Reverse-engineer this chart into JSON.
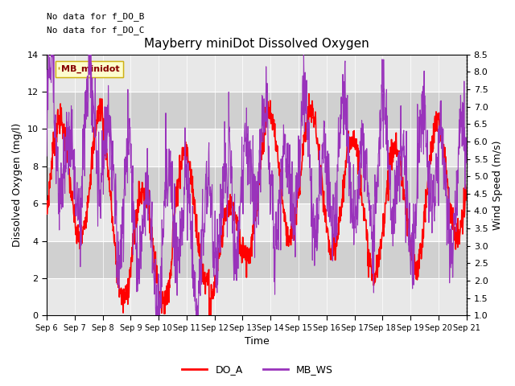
{
  "title": "Mayberry miniDot Dissolved Oxygen",
  "xlabel": "Time",
  "ylabel_left": "Dissolved Oxygen (mg/l)",
  "ylabel_right": "Wind Speed (m/s)",
  "top_left_text_1": "No data for f_DO_B",
  "top_left_text_2": "No data for f_DO_C",
  "legend_label_text": "MB_minidot",
  "legend_do": "DO_A",
  "legend_ws": "MB_WS",
  "do_color": "#ff0000",
  "ws_color": "#9933bb",
  "ylim_left": [
    0,
    14
  ],
  "ylim_right": [
    1.0,
    8.5
  ],
  "yticks_left": [
    0,
    2,
    4,
    6,
    8,
    10,
    12,
    14
  ],
  "yticks_right": [
    1.0,
    1.5,
    2.0,
    2.5,
    3.0,
    3.5,
    4.0,
    4.5,
    5.0,
    5.5,
    6.0,
    6.5,
    7.0,
    7.5,
    8.0,
    8.5
  ],
  "xtick_labels": [
    "Sep 6",
    "Sep 7",
    "Sep 8",
    "Sep 9",
    "Sep 10",
    "Sep 11",
    "Sep 12",
    "Sep 13",
    "Sep 14",
    "Sep 15",
    "Sep 16",
    "Sep 17",
    "Sep 18",
    "Sep 19",
    "Sep 20",
    "Sep 21"
  ],
  "plot_bg": "#e8e8e8",
  "band_light": "#e8e8e8",
  "band_dark": "#d0d0d0",
  "grid_color": "#ffffff",
  "figsize": [
    6.4,
    4.8
  ],
  "dpi": 100,
  "title_fontsize": 11,
  "axis_fontsize": 9,
  "tick_fontsize": 8
}
